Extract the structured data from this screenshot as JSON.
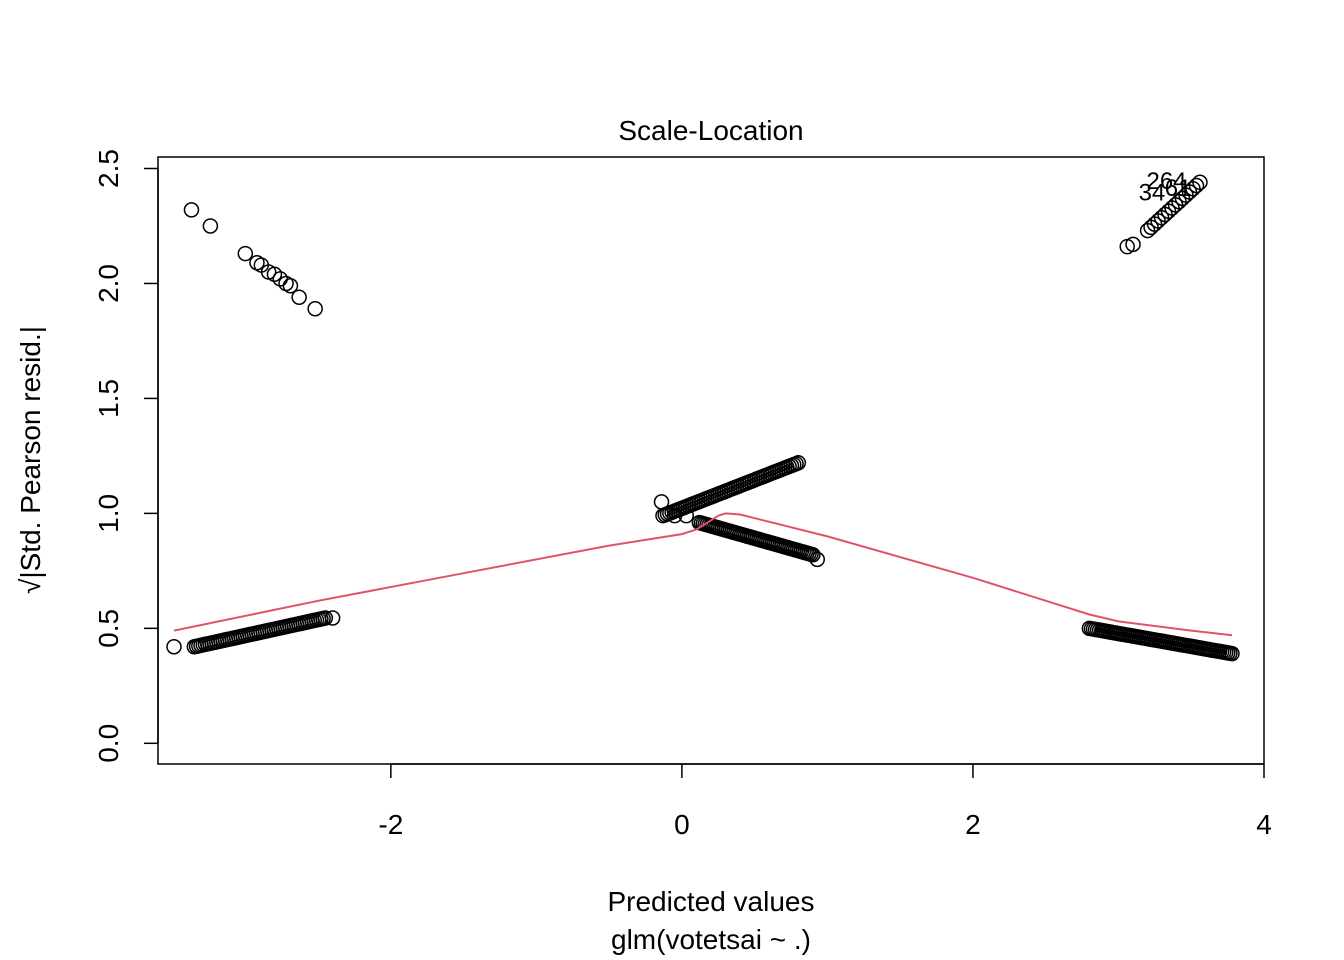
{
  "chart_data": {
    "type": "scatter",
    "title": "Scale-Location",
    "xlabel": "Predicted values",
    "xlabel2": "glm(votetsai ~ .)",
    "ylabel_prefix": "√",
    "ylabel": "|Std. Pearson resid.|",
    "xlim": [
      -3.6,
      4.0
    ],
    "ylim": [
      -0.09,
      2.55
    ],
    "x_ticks": [
      -2,
      0,
      2,
      4
    ],
    "x_tick_labels": [
      "-2",
      "0",
      "2",
      "4"
    ],
    "y_ticks": [
      0.0,
      0.5,
      1.0,
      1.5,
      2.0,
      2.5
    ],
    "y_tick_labels": [
      "0.0",
      "0.5",
      "1.0",
      "1.5",
      "2.0",
      "2.5"
    ],
    "grid": false,
    "legend": "none",
    "colors": {
      "points": "#000000",
      "smoother": "#DF536B",
      "frame": "#000000"
    },
    "clusters": [
      {
        "x_start": -3.35,
        "y_start": 0.42,
        "x_end": -2.45,
        "y_end": 0.545,
        "count": 60
      },
      {
        "x_start": -0.13,
        "y_start": 0.99,
        "x_end": 0.8,
        "y_end": 1.22,
        "count": 60
      },
      {
        "x_start": 0.12,
        "y_start": 0.96,
        "x_end": 0.9,
        "y_end": 0.82,
        "count": 60
      },
      {
        "x_start": 2.8,
        "y_start": 0.5,
        "x_end": 3.78,
        "y_end": 0.39,
        "count": 70
      },
      {
        "x_start": 3.2,
        "y_start": 2.23,
        "x_end": 3.56,
        "y_end": 2.44,
        "count": 16
      }
    ],
    "points": [
      {
        "x": -3.49,
        "y": 0.42
      },
      {
        "x": -3.37,
        "y": 2.32
      },
      {
        "x": -3.24,
        "y": 2.25
      },
      {
        "x": -3.0,
        "y": 2.13
      },
      {
        "x": -2.92,
        "y": 2.09
      },
      {
        "x": -2.89,
        "y": 2.08
      },
      {
        "x": -2.84,
        "y": 2.05
      },
      {
        "x": -2.8,
        "y": 2.04
      },
      {
        "x": -2.76,
        "y": 2.02
      },
      {
        "x": -2.72,
        "y": 2.0
      },
      {
        "x": -2.69,
        "y": 1.99
      },
      {
        "x": -2.63,
        "y": 1.94
      },
      {
        "x": -2.52,
        "y": 1.89
      },
      {
        "x": -0.14,
        "y": 1.05
      },
      {
        "x": -0.05,
        "y": 0.99
      },
      {
        "x": 0.03,
        "y": 0.99
      },
      {
        "x": 0.93,
        "y": 0.8
      },
      {
        "x": 3.06,
        "y": 2.16
      },
      {
        "x": 3.1,
        "y": 2.17
      },
      {
        "x": -2.4,
        "y": 0.545
      }
    ],
    "smoother": {
      "x": [
        -3.49,
        -2.5,
        -1.5,
        -0.5,
        0.0,
        0.1,
        0.2,
        0.25,
        0.3,
        0.4,
        1.0,
        2.0,
        2.8,
        3.0,
        3.5,
        3.78
      ],
      "y": [
        0.49,
        0.62,
        0.74,
        0.86,
        0.91,
        0.93,
        0.97,
        0.99,
        1.0,
        0.995,
        0.9,
        0.72,
        0.56,
        0.53,
        0.49,
        0.47
      ]
    },
    "annotations": [
      {
        "text": "264",
        "x": 3.33,
        "y": 2.45
      },
      {
        "text": "34",
        "x": 3.23,
        "y": 2.4
      },
      {
        "text": "61",
        "x": 3.41,
        "y": 2.42
      }
    ]
  }
}
